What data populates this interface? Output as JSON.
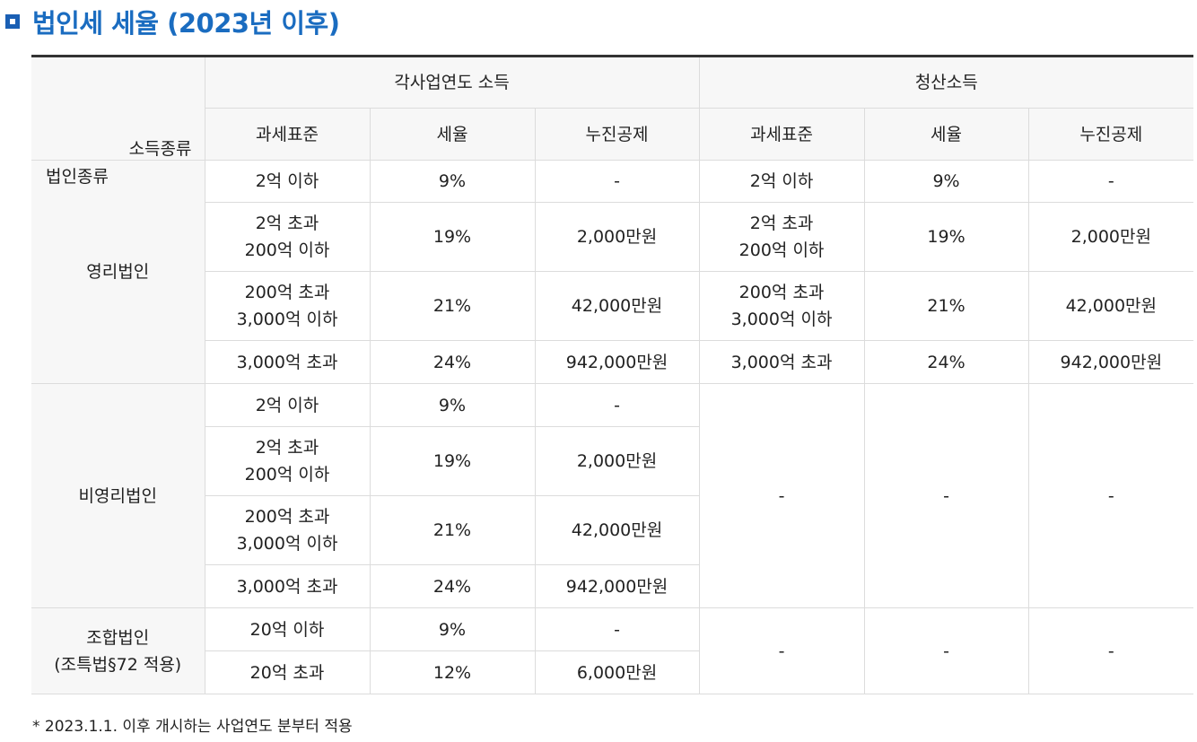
{
  "heading": {
    "icon": "square-bullet-icon",
    "title": "법인세 세율 (2023년 이후)"
  },
  "table": {
    "corner_top": "소득종류",
    "corner_bottom": "법인종류",
    "groups": [
      "각사업연도 소득",
      "청산소득"
    ],
    "subheaders": [
      "과세표준",
      "세율",
      "누진공제",
      "과세표준",
      "세율",
      "누진공제"
    ],
    "corp_types": [
      "영리법인",
      "비영리법인",
      "조합법인",
      "(조특법§72 적용)"
    ],
    "dash": "-",
    "rows": [
      [
        "2억 이하",
        "9%",
        "-",
        "2억 이하",
        "9%",
        "-"
      ],
      [
        "2억 초과",
        "200억 이하",
        "19%",
        "2,000만원",
        "2억 초과",
        "200억 이하",
        "19%",
        "2,000만원"
      ],
      [
        "200억 초과",
        "3,000억 이하",
        "21%",
        "42,000만원",
        "200억 초과",
        "3,000억 이하",
        "21%",
        "42,000만원"
      ],
      [
        "3,000억 초과",
        "24%",
        "942,000만원",
        "3,000억 초과",
        "24%",
        "942,000만원"
      ],
      [
        "2억 이하",
        "9%",
        "-"
      ],
      [
        "2억 초과",
        "200억 이하",
        "19%",
        "2,000만원"
      ],
      [
        "200억 초과",
        "3,000억 이하",
        "21%",
        "42,000만원"
      ],
      [
        "3,000억 초과",
        "24%",
        "942,000만원"
      ],
      [
        "20억 이하",
        "9%",
        "-"
      ],
      [
        "20억 초과",
        "12%",
        "6,000만원"
      ]
    ]
  },
  "footnote": "* 2023.1.1. 이후 개시하는 사업연도 분부터 적용"
}
